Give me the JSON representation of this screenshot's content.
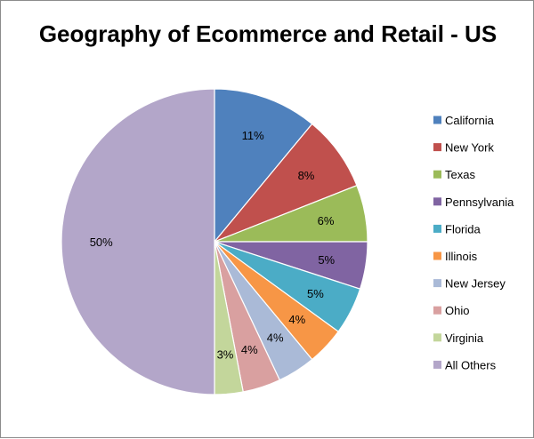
{
  "chart_data": {
    "type": "pie",
    "title": "Geography of Ecommerce and Retail - US",
    "categories": [
      "California",
      "New York",
      "Texas",
      "Pennsylvania",
      "Florida",
      "Illinois",
      "New Jersey",
      "Ohio",
      "Virginia",
      "All Others"
    ],
    "values": [
      11,
      8,
      6,
      5,
      5,
      4,
      4,
      4,
      3,
      50
    ],
    "data_labels": [
      "11%",
      "8%",
      "6%",
      "5%",
      "5%",
      "4%",
      "4%",
      "4%",
      "3%",
      "50%"
    ],
    "colors": [
      "#4f81bd",
      "#c0504d",
      "#9bbb59",
      "#8064a2",
      "#4bacc6",
      "#f79646",
      "#aabad7",
      "#d9a0a0",
      "#c3d69b",
      "#b3a6c9"
    ],
    "legend_position": "right",
    "start_angle": "12 o'clock",
    "direction": "clockwise"
  }
}
